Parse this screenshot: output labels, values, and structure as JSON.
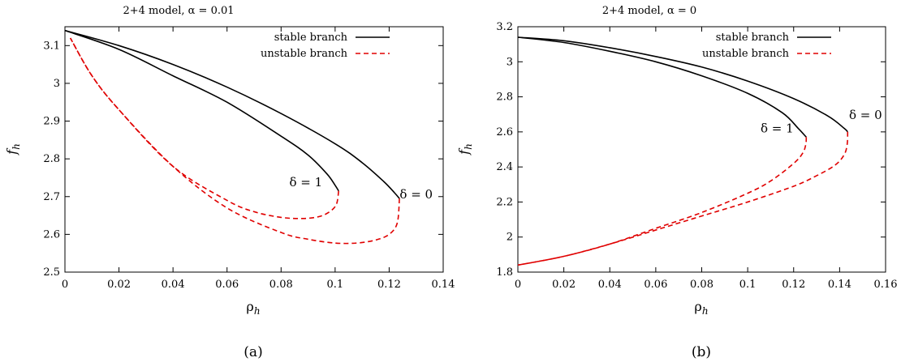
{
  "chart_data": [
    {
      "panel_id": "a",
      "type": "line",
      "title": "2+4 model, α = 0.01",
      "xlabel": "ρ",
      "xlabel_sub": "h",
      "ylabel": "f",
      "ylabel_sub": "h",
      "caption": "(a)",
      "xlim": [
        0,
        0.14
      ],
      "ylim": [
        2.5,
        3.15
      ],
      "xticks": [
        0,
        0.02,
        0.04,
        0.06,
        0.08,
        0.1,
        0.12,
        0.14
      ],
      "xtick_labels": [
        "0",
        "0.02",
        "0.04",
        "0.06",
        "0.08",
        "0.1",
        "0.12",
        "0.14"
      ],
      "yticks": [
        2.5,
        2.6,
        2.7,
        2.8,
        2.9,
        3.0,
        3.1
      ],
      "ytick_labels": [
        "2.5",
        "2.6",
        "2.7",
        "2.8",
        "2.9",
        "3",
        "3.1"
      ],
      "legend": {
        "position": "top-right",
        "entries": [
          {
            "label": "stable branch",
            "color": "#000000",
            "style": "solid"
          },
          {
            "label": "unstable branch",
            "color": "#e00000",
            "style": "dashed"
          }
        ]
      },
      "series": [
        {
          "name": "stable branch",
          "curve": "δ = 0",
          "color": "#000000",
          "style": "solid",
          "x": [
            0.0,
            0.02,
            0.04,
            0.06,
            0.08,
            0.1,
            0.11,
            0.118,
            0.122,
            0.1238
          ],
          "y": [
            3.14,
            3.1,
            3.05,
            2.99,
            2.92,
            2.84,
            2.79,
            2.74,
            2.71,
            2.695
          ]
        },
        {
          "name": "unstable branch",
          "curve": "δ = 0",
          "color": "#e00000",
          "style": "dashed",
          "x": [
            0.1238,
            0.123,
            0.12,
            0.115,
            0.108,
            0.1,
            0.09,
            0.08,
            0.06,
            0.04,
            0.02,
            0.01,
            0.002
          ],
          "y": [
            2.695,
            2.63,
            2.6,
            2.585,
            2.577,
            2.577,
            2.587,
            2.605,
            2.67,
            2.78,
            2.93,
            3.02,
            3.12
          ]
        },
        {
          "name": "stable branch",
          "curve": "δ = 1",
          "color": "#000000",
          "style": "solid",
          "x": [
            0.0,
            0.02,
            0.04,
            0.06,
            0.08,
            0.09,
            0.097,
            0.1,
            0.1013
          ],
          "y": [
            3.14,
            3.09,
            3.02,
            2.95,
            2.86,
            2.81,
            2.76,
            2.73,
            2.715
          ]
        },
        {
          "name": "unstable branch",
          "curve": "δ = 1",
          "color": "#e00000",
          "style": "dashed",
          "x": [
            0.1013,
            0.1005,
            0.098,
            0.094,
            0.088,
            0.08,
            0.07,
            0.06,
            0.04,
            0.02,
            0.01,
            0.002
          ],
          "y": [
            2.715,
            2.68,
            2.66,
            2.647,
            2.642,
            2.645,
            2.66,
            2.69,
            2.78,
            2.93,
            3.02,
            3.12
          ]
        }
      ],
      "annotations": [
        {
          "text": "δ = 1",
          "x": 0.1,
          "y": 2.715
        },
        {
          "text": "δ = 0",
          "x": 0.124,
          "y": 2.695
        }
      ]
    },
    {
      "panel_id": "b",
      "type": "line",
      "title": "2+4 model, α = 0",
      "xlabel": "ρ",
      "xlabel_sub": "h",
      "ylabel": "f",
      "ylabel_sub": "h",
      "caption": "(b)",
      "xlim": [
        0,
        0.16
      ],
      "ylim": [
        1.8,
        3.2
      ],
      "xticks": [
        0,
        0.02,
        0.04,
        0.06,
        0.08,
        0.1,
        0.12,
        0.14,
        0.16
      ],
      "xtick_labels": [
        "0",
        "0.02",
        "0.04",
        "0.06",
        "0.08",
        "0.1",
        "0.12",
        "0.14",
        "0.16"
      ],
      "yticks": [
        1.8,
        2.0,
        2.2,
        2.4,
        2.6,
        2.8,
        3.0,
        3.2
      ],
      "ytick_labels": [
        "1.8",
        "2",
        "2.2",
        "2.4",
        "2.6",
        "2.8",
        "3",
        "3.2"
      ],
      "legend": {
        "position": "top-right",
        "entries": [
          {
            "label": "stable branch",
            "color": "#000000",
            "style": "solid"
          },
          {
            "label": "unstable branch",
            "color": "#e00000",
            "style": "dashed"
          }
        ]
      },
      "series": [
        {
          "name": "stable branch",
          "curve": "δ = 0",
          "color": "#000000",
          "style": "solid",
          "x": [
            0.0,
            0.02,
            0.04,
            0.06,
            0.08,
            0.1,
            0.12,
            0.135,
            0.142,
            0.1435
          ],
          "y": [
            3.14,
            3.12,
            3.08,
            3.03,
            2.97,
            2.89,
            2.79,
            2.69,
            2.62,
            2.6
          ]
        },
        {
          "name": "unstable branch",
          "curve": "δ = 0",
          "color": "#e00000",
          "style": "dashed",
          "x": [
            0.1435,
            0.1433,
            0.142,
            0.138,
            0.13,
            0.12,
            0.1,
            0.08,
            0.06,
            0.04,
            0.02,
            0.0
          ],
          "y": [
            2.6,
            2.53,
            2.47,
            2.41,
            2.35,
            2.29,
            2.2,
            2.12,
            2.04,
            1.96,
            1.89,
            1.84
          ]
        },
        {
          "name": "stable branch",
          "curve": "δ = 1",
          "color": "#000000",
          "style": "solid",
          "x": [
            0.0,
            0.02,
            0.04,
            0.06,
            0.08,
            0.1,
            0.115,
            0.122,
            0.1255
          ],
          "y": [
            3.14,
            3.11,
            3.06,
            3.0,
            2.92,
            2.82,
            2.71,
            2.62,
            2.57
          ]
        },
        {
          "name": "unstable branch",
          "curve": "δ = 1",
          "color": "#e00000",
          "style": "dashed",
          "x": [
            0.1255,
            0.1253,
            0.124,
            0.12,
            0.11,
            0.1,
            0.08,
            0.06,
            0.04,
            0.02,
            0.0
          ],
          "y": [
            2.57,
            2.53,
            2.48,
            2.42,
            2.32,
            2.25,
            2.14,
            2.05,
            1.96,
            1.89,
            1.84
          ]
        }
      ],
      "annotations": [
        {
          "text": "δ = 1",
          "x": 0.1255,
          "y": 2.57
        },
        {
          "text": "δ = 0",
          "x": 0.1435,
          "y": 2.6
        }
      ]
    }
  ]
}
